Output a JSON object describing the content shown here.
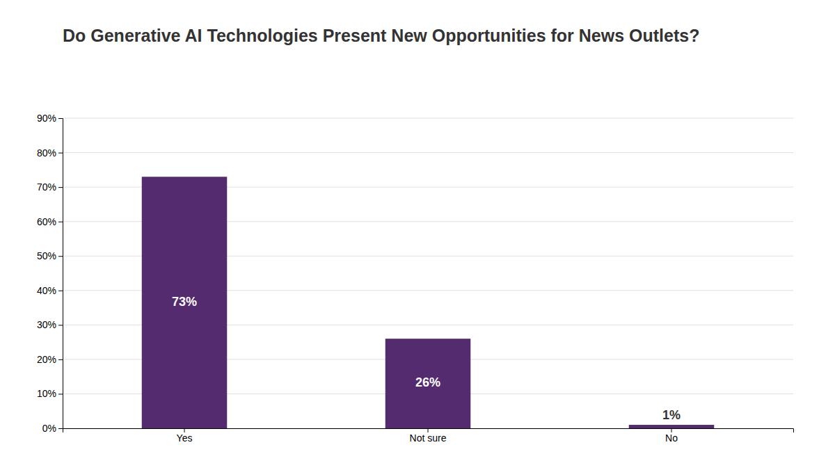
{
  "chart_data": {
    "type": "bar",
    "title": "Do Generative AI Technologies Present New Opportunities for News Outlets?",
    "categories": [
      "Yes",
      "Not sure",
      "No"
    ],
    "values": [
      73,
      26,
      1
    ],
    "value_labels": [
      "73%",
      "26%",
      "1%"
    ],
    "data_labels": true,
    "color": "#542b6e",
    "ylim": [
      0,
      90
    ],
    "yticks": [
      {
        "value": 0,
        "label": "0%"
      },
      {
        "value": 10,
        "label": "10%"
      },
      {
        "value": 20,
        "label": "20%"
      },
      {
        "value": 30,
        "label": "30%"
      },
      {
        "value": 40,
        "label": "40%"
      },
      {
        "value": 50,
        "label": "50%"
      },
      {
        "value": 60,
        "label": "60%"
      },
      {
        "value": 70,
        "label": "70%"
      },
      {
        "value": 80,
        "label": "80%"
      },
      {
        "value": 90,
        "label": "90%"
      }
    ],
    "grid": true
  }
}
